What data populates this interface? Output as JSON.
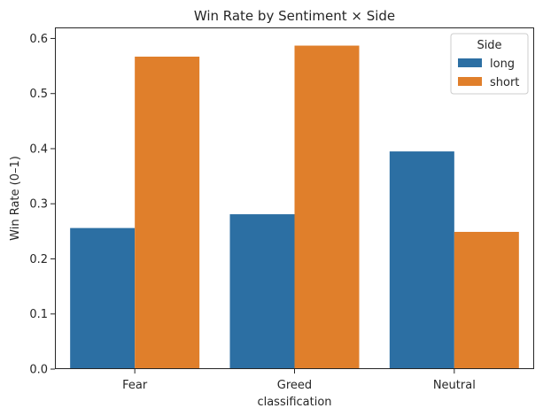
{
  "chart_data": {
    "type": "bar",
    "title": "Win Rate by Sentiment × Side",
    "xlabel": "classification",
    "ylabel": "Win Rate (0–1)",
    "categories": [
      "Fear",
      "Greed",
      "Neutral"
    ],
    "series": [
      {
        "name": "long",
        "color": "#2c6fa3",
        "values": [
          0.256,
          0.281,
          0.395
        ]
      },
      {
        "name": "short",
        "color": "#e07f2b",
        "values": [
          0.567,
          0.587,
          0.249
        ]
      }
    ],
    "ylim": [
      0,
      0.62
    ],
    "yticks": [
      "0.0",
      "0.1",
      "0.2",
      "0.3",
      "0.4",
      "0.5",
      "0.6"
    ],
    "grid": false,
    "legend": {
      "title": "Side",
      "placement": "top-right"
    }
  }
}
